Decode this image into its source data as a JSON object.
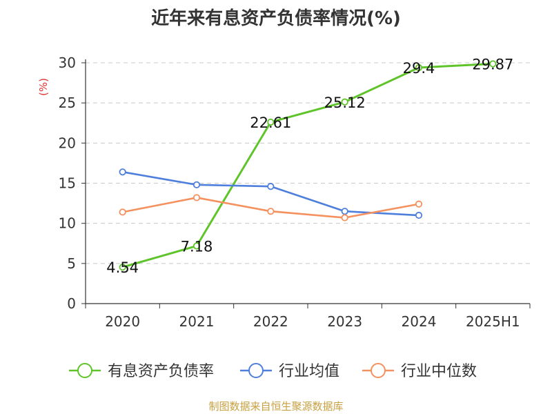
{
  "title": "近年来有息资产负债率情况(%)",
  "footer": "制图数据来自恒生聚源数据库",
  "chart_data": {
    "type": "line",
    "ylabel": "(%)",
    "categories": [
      "2020",
      "2021",
      "2022",
      "2023",
      "2024",
      "2025H1"
    ],
    "yticks": [
      "0",
      "5",
      "10",
      "15",
      "20",
      "25",
      "30"
    ],
    "ylim": [
      0,
      30
    ],
    "grid": true,
    "legend_position": "bottom",
    "series": [
      {
        "name": "有息资产负债率",
        "color": "#5fc42a",
        "values": [
          4.54,
          7.18,
          22.61,
          25.12,
          29.4,
          29.87
        ],
        "labels": [
          "4.54",
          "7.18",
          "22.61",
          "25.12",
          "29.4",
          "29.87"
        ]
      },
      {
        "name": "行业均值",
        "color": "#4f7fdc",
        "values": [
          16.4,
          14.8,
          14.6,
          11.5,
          11.0,
          null
        ]
      },
      {
        "name": "行业中位数",
        "color": "#f4915e",
        "values": [
          11.4,
          13.2,
          11.5,
          10.7,
          12.4,
          null
        ]
      }
    ]
  }
}
